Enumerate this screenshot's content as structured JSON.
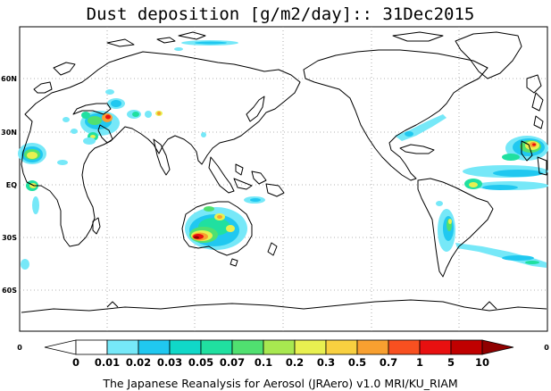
{
  "title": "Dust deposition [g/m2/day]:: 31Dec2015",
  "credit": "The Japanese Reanalysis for Aerosol (JRAero) v1.0 MRI/KU_RIAM",
  "latitude_labels": [
    "60N",
    "30N",
    "EQ",
    "30S",
    "60S"
  ],
  "x_edge_labels": [
    "0",
    "0"
  ],
  "colorbar": {
    "ticks": [
      "0",
      "0.01",
      "0.02",
      "0.03",
      "0.05",
      "0.07",
      "0.1",
      "0.2",
      "0.3",
      "0.5",
      "0.7",
      "1",
      "5",
      "10"
    ],
    "colors": [
      "#ffffff",
      "#ffffff",
      "#76e8f8",
      "#20c8f0",
      "#10d8c8",
      "#20e0a0",
      "#50e070",
      "#a8e850",
      "#e8f050",
      "#f8d040",
      "#f8a030",
      "#f85020",
      "#e81010",
      "#c00000",
      "#900000"
    ]
  },
  "colors": {
    "light": "#76e8f8",
    "cyan": "#20c8f0",
    "teal": "#20e0a0",
    "green": "#50e070",
    "yellow": "#e8f050",
    "orange": "#f8a030",
    "red": "#e81010",
    "dark": "#900000"
  }
}
